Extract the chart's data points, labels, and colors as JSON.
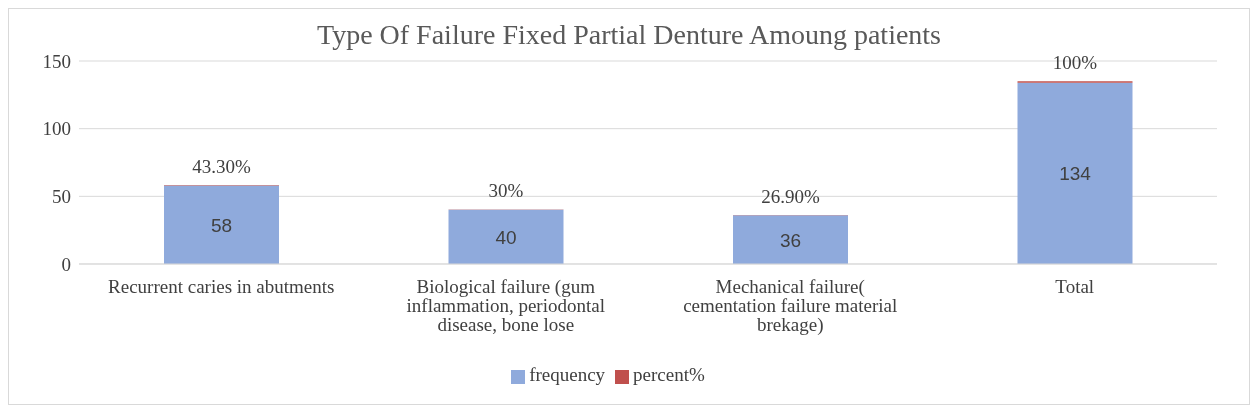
{
  "chart_data": {
    "type": "bar",
    "title": "Type Of Failure Fixed Partial Denture Amoung patients",
    "categories": [
      "Recurrent caries in abutments",
      "Biological failure (gum inflammation, periodontal disease, bone lose",
      "Mechanical failure( cementation failure material brekage)",
      "Total"
    ],
    "series": [
      {
        "name": "frequency",
        "color": "#8faadc",
        "values": [
          58,
          40,
          36,
          134
        ],
        "value_labels": [
          "58",
          "40",
          "36",
          "134"
        ]
      },
      {
        "name": "percent%",
        "color": "#c0504d",
        "values": [
          0.433,
          0.3,
          0.269,
          1
        ],
        "value_labels": [
          "43.30%",
          "30%",
          "26.90%",
          "100%"
        ]
      }
    ],
    "stacked": true,
    "ylim": [
      0,
      150
    ],
    "yticks": [
      0,
      50,
      100,
      150
    ],
    "grid": "y",
    "legend": "bottom"
  }
}
